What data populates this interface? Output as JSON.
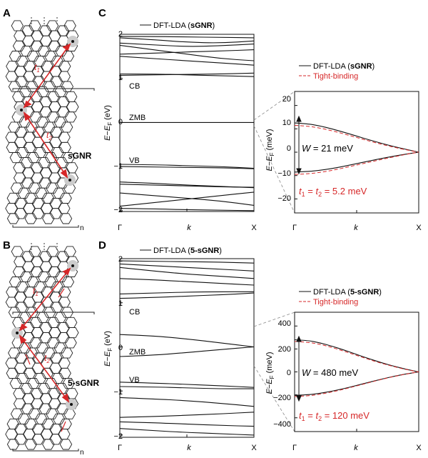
{
  "panels": {
    "A": {
      "letter": "A",
      "name": "sGNR",
      "t1": "t",
      "t1_sub": "1",
      "t2": "t",
      "t2_sub": "2",
      "unit_cell_sub": "n"
    },
    "B": {
      "letter": "B",
      "name": "5-sGNR",
      "t1": "t",
      "t1_sub": "1",
      "t2": "t",
      "t2_sub": "2",
      "unit_cell_sub": "n"
    },
    "C": {
      "letter": "C",
      "legend": {
        "prefix": "DFT-LDA (",
        "bold": "sGNR",
        "suffix": ")"
      },
      "ylabel": {
        "e": "E",
        "dash": "−",
        "ef": "E",
        "sub": "F",
        "unit": " (eV)"
      },
      "yticks": [
        "2",
        "1",
        "0",
        "−1",
        "−2"
      ],
      "xticks": [
        "Γ",
        "k",
        "X"
      ],
      "band_labels": {
        "cb": "CB",
        "zmb": "ZMB",
        "vb": "VB"
      },
      "inset": {
        "legend_dft": {
          "prefix": "DFT-LDA (",
          "bold": "sGNR",
          "suffix": ")"
        },
        "legend_tb": "Tight-binding",
        "ylabel": {
          "e": "E",
          "dash": "−",
          "ef": "E",
          "sub": "F",
          "unit": " (meV)"
        },
        "yticks": [
          "20",
          "10",
          "0",
          "−10",
          "−20"
        ],
        "xticks": [
          "Γ",
          "k",
          "X"
        ],
        "width_label": {
          "w": "W",
          "eq": " = 21 meV"
        },
        "hop_label": {
          "t1": "t",
          "s1": "1",
          "eq1": " = ",
          "t2": "t",
          "s2": "2",
          "eq2": " = 5.2 meV"
        }
      }
    },
    "D": {
      "letter": "D",
      "legend": {
        "prefix": "DFT-LDA (",
        "bold": "5-sGNR",
        "suffix": ")"
      },
      "ylabel": {
        "e": "E",
        "dash": "−",
        "ef": "E",
        "sub": "F",
        "unit": " (eV)"
      },
      "yticks": [
        "2",
        "1",
        "0",
        "−1",
        "−2"
      ],
      "xticks": [
        "Γ",
        "k",
        "X"
      ],
      "band_labels": {
        "cb": "CB",
        "zmb": "ZMB",
        "vb": "VB"
      },
      "inset": {
        "legend_dft": {
          "prefix": "DFT-LDA (",
          "bold": "5-sGNR",
          "suffix": ")"
        },
        "legend_tb": "Tight-binding",
        "ylabel": {
          "e": "E",
          "dash": "−",
          "ef": "E",
          "sub": "F",
          "unit": " (meV)"
        },
        "yticks": [
          "400",
          "200",
          "0",
          "−200",
          "−400"
        ],
        "xticks": [
          "Γ",
          "k",
          "X"
        ],
        "width_label": {
          "w": "W",
          "eq": " = 480 meV"
        },
        "hop_label": {
          "t1": "t",
          "s1": "1",
          "eq1": " = ",
          "t2": "t",
          "s2": "2",
          "eq2": " = 120 meV"
        }
      }
    }
  },
  "colors": {
    "dft": "#111111",
    "tight_binding": "#d62728",
    "hopping_arrow": "#d62728",
    "site_halo": "#cccccc"
  },
  "chart_data": [
    {
      "panel": "C",
      "type": "line",
      "xlabel": "k",
      "ylim": [
        -2.1,
        2.0
      ],
      "x": [
        0,
        0.25,
        0.5,
        0.75,
        1
      ],
      "series": [
        {
          "values": [
            1.95,
            1.95,
            1.94,
            1.93,
            1.92
          ]
        },
        {
          "values": [
            1.92,
            1.88,
            1.82,
            1.8,
            1.85
          ]
        },
        {
          "values": [
            1.8,
            1.76,
            1.72,
            1.74,
            1.78
          ]
        },
        {
          "values": [
            1.75,
            1.65,
            1.55,
            1.45,
            1.4
          ]
        },
        {
          "values": [
            1.55,
            1.57,
            1.6,
            1.62,
            1.65
          ]
        },
        {
          "values": [
            1.5,
            1.45,
            1.4,
            1.35,
            1.3
          ]
        },
        {
          "values": [
            1.1,
            1.1,
            1.08,
            1.06,
            1.04
          ]
        },
        {
          "values": [
            1.07,
            1.08,
            1.09,
            1.1,
            1.12
          ]
        },
        {
          "values": [
            0.0,
            0.0,
            0.0,
            0.0,
            0.0
          ]
        },
        {
          "values": [
            -0.95,
            -0.96,
            -0.98,
            -1.0,
            -1.04
          ]
        },
        {
          "values": [
            -1.0,
            -1.01,
            -1.02,
            -1.03,
            -1.05
          ]
        },
        {
          "values": [
            -1.35,
            -1.38,
            -1.42,
            -1.45,
            -1.48
          ]
        },
        {
          "values": [
            -1.4,
            -1.42,
            -1.44,
            -1.46,
            -1.47
          ]
        },
        {
          "values": [
            -1.6,
            -1.66,
            -1.72,
            -1.78,
            -1.88
          ]
        },
        {
          "values": [
            -1.9,
            -1.82,
            -1.74,
            -1.66,
            -1.58
          ]
        },
        {
          "values": [
            -1.95,
            -1.96,
            -1.98,
            -1.99,
            -2.0
          ]
        }
      ]
    },
    {
      "panel": "C-inset",
      "type": "line",
      "xlabel": "k",
      "ylim": [
        -27,
        27
      ],
      "x": [
        0,
        0.1,
        0.2,
        0.3,
        0.4,
        0.5,
        0.6,
        0.7,
        0.8,
        0.9,
        1
      ],
      "series": [
        {
          "name": "DFT-LDA (sGNR)",
          "values": [
            12.5,
            12.2,
            11.3,
            10.0,
            8.5,
            6.9,
            5.3,
            3.8,
            2.4,
            1.2,
            0.0
          ]
        },
        {
          "name": "DFT-LDA (sGNR)",
          "values": [
            -8.5,
            -8.3,
            -7.8,
            -7.0,
            -6.0,
            -4.9,
            -3.8,
            -2.7,
            -1.7,
            -0.8,
            0.0
          ]
        },
        {
          "name": "Tight-binding",
          "values": [
            11.5,
            11.2,
            10.4,
            9.2,
            7.8,
            6.3,
            4.8,
            3.4,
            2.1,
            1.0,
            0.0
          ]
        },
        {
          "name": "Tight-binding",
          "values": [
            -9.5,
            -9.3,
            -8.7,
            -7.8,
            -6.7,
            -5.5,
            -4.3,
            -3.1,
            -2.0,
            -0.9,
            0.0
          ]
        }
      ]
    },
    {
      "panel": "D",
      "type": "line",
      "xlabel": "k",
      "ylim": [
        -2.1,
        2.0
      ],
      "x": [
        0,
        0.25,
        0.5,
        0.75,
        1
      ],
      "series": [
        {
          "values": [
            1.95,
            1.94,
            1.93,
            1.92,
            1.9
          ]
        },
        {
          "values": [
            1.88,
            1.84,
            1.8,
            1.76,
            1.72
          ]
        },
        {
          "values": [
            1.8,
            1.72,
            1.65,
            1.6,
            1.55
          ]
        },
        {
          "values": [
            1.55,
            1.52,
            1.48,
            1.44,
            1.4
          ]
        },
        {
          "values": [
            1.2,
            1.22,
            1.24,
            1.25,
            1.25
          ]
        },
        {
          "values": [
            1.1,
            1.12,
            1.15,
            1.18,
            1.22
          ]
        },
        {
          "values": [
            0.28,
            0.25,
            0.18,
            0.09,
            0.0
          ]
        },
        {
          "values": [
            -0.22,
            -0.19,
            -0.13,
            -0.06,
            0.0
          ]
        },
        {
          "values": [
            -0.8,
            -0.82,
            -0.85,
            -0.88,
            -0.92
          ]
        },
        {
          "values": [
            -0.9,
            -0.91,
            -0.93,
            -0.95,
            -0.95
          ]
        },
        {
          "values": [
            -1.15,
            -1.18,
            -1.22,
            -1.28,
            -1.35
          ]
        },
        {
          "values": [
            -1.6,
            -1.58,
            -1.55,
            -1.52,
            -1.48
          ]
        },
        {
          "values": [
            -1.7,
            -1.72,
            -1.75,
            -1.78,
            -1.8
          ]
        },
        {
          "values": [
            -1.85,
            -1.9,
            -1.94,
            -1.97,
            -2.0
          ]
        }
      ]
    },
    {
      "panel": "D-inset",
      "type": "line",
      "xlabel": "k",
      "ylim": [
        -520,
        520
      ],
      "x": [
        0,
        0.1,
        0.2,
        0.3,
        0.4,
        0.5,
        0.6,
        0.7,
        0.8,
        0.9,
        1
      ],
      "series": [
        {
          "name": "DFT-LDA (5-sGNR)",
          "values": [
            280,
            275,
            255,
            225,
            190,
            152,
            115,
            80,
            50,
            22,
            0
          ]
        },
        {
          "name": "DFT-LDA (5-sGNR)",
          "values": [
            -205,
            -200,
            -188,
            -168,
            -145,
            -118,
            -90,
            -63,
            -38,
            -17,
            0
          ]
        },
        {
          "name": "Tight-binding",
          "values": [
            265,
            260,
            242,
            214,
            180,
            144,
            108,
            75,
            46,
            20,
            0
          ]
        },
        {
          "name": "Tight-binding",
          "values": [
            -215,
            -210,
            -196,
            -175,
            -150,
            -122,
            -93,
            -65,
            -40,
            -18,
            0
          ]
        }
      ]
    }
  ]
}
